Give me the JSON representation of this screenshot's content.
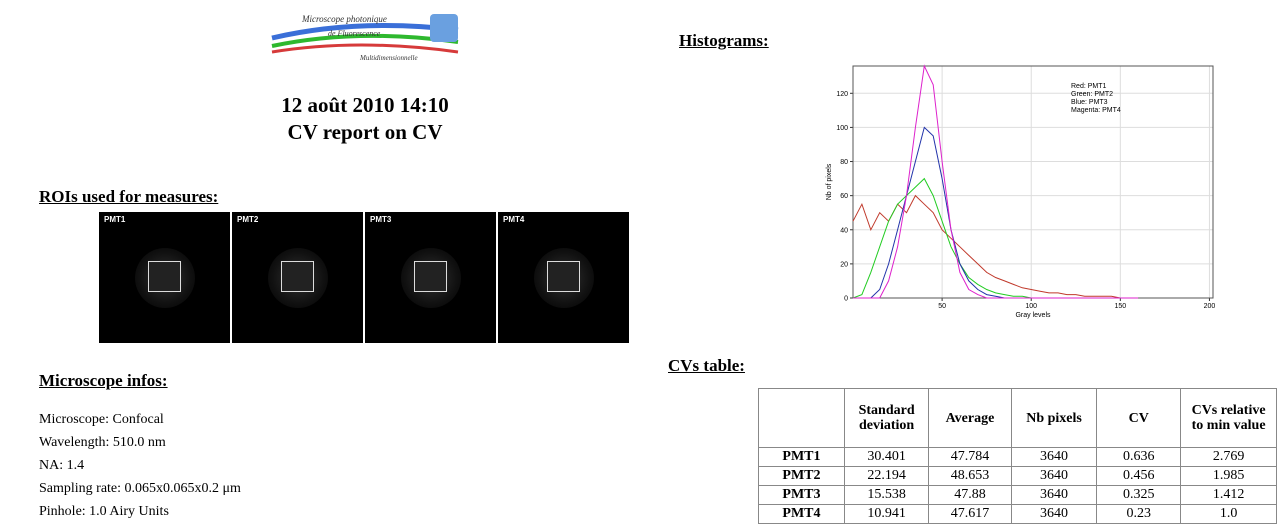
{
  "logo": {
    "line1": "Microscope photonique",
    "line2": "de Fluorescence",
    "line3": "Multidimensionnelle"
  },
  "header": {
    "date": "12 août 2010 14:10",
    "title": "CV report on CV"
  },
  "rois": {
    "heading": "ROIs used for measures:",
    "labels": [
      "PMT1",
      "PMT2",
      "PMT3",
      "PMT4"
    ]
  },
  "microscope": {
    "heading": "Microscope infos:",
    "lines": [
      "Microscope: Confocal",
      "Wavelength: 510.0 nm",
      "NA: 1.4",
      "Sampling rate: 0.065x0.065x0.2 μm",
      "Pinhole: 1.0 Airy Units"
    ]
  },
  "histograms": {
    "heading": "Histograms:"
  },
  "chart_data": {
    "type": "line",
    "x_label": "Gray levels",
    "y_label": "Nb of pixels",
    "legend": [
      "Red: PMT1",
      "Green: PMT2",
      "Blue: PMT3",
      "Magenta: PMT4"
    ],
    "x": [
      0,
      5,
      10,
      15,
      20,
      25,
      30,
      35,
      40,
      45,
      50,
      55,
      60,
      65,
      70,
      75,
      80,
      85,
      90,
      95,
      100,
      105,
      110,
      115,
      120,
      125,
      130,
      135,
      140,
      145,
      150,
      155,
      160
    ],
    "series": [
      {
        "color": "#c0392b",
        "values": [
          45,
          55,
          40,
          50,
          45,
          55,
          50,
          60,
          55,
          50,
          40,
          35,
          30,
          25,
          20,
          15,
          12,
          10,
          8,
          6,
          5,
          4,
          3,
          3,
          2,
          2,
          1,
          1,
          1,
          1,
          0,
          0,
          0
        ]
      },
      {
        "color": "#22cc22",
        "values": [
          0,
          2,
          15,
          30,
          45,
          55,
          60,
          65,
          70,
          60,
          45,
          30,
          20,
          12,
          8,
          5,
          3,
          2,
          1,
          1,
          0,
          0,
          0,
          0,
          0,
          0,
          0,
          0,
          0,
          0,
          0,
          0,
          0
        ]
      },
      {
        "color": "#2233aa",
        "values": [
          0,
          0,
          0,
          5,
          20,
          40,
          60,
          80,
          100,
          95,
          70,
          40,
          20,
          10,
          5,
          2,
          1,
          0,
          0,
          0,
          0,
          0,
          0,
          0,
          0,
          0,
          0,
          0,
          0,
          0,
          0,
          0,
          0
        ]
      },
      {
        "color": "#dd22cc",
        "values": [
          0,
          0,
          0,
          0,
          10,
          30,
          60,
          100,
          136,
          125,
          80,
          40,
          15,
          5,
          2,
          0,
          0,
          0,
          0,
          0,
          0,
          0,
          0,
          0,
          0,
          0,
          0,
          0,
          0,
          0,
          0,
          0,
          0
        ]
      }
    ],
    "xlim": [
      0,
      202
    ],
    "ylim": [
      0,
      136
    ],
    "xticks": [
      50,
      100,
      150,
      200
    ],
    "yticks": [
      0,
      20,
      40,
      60,
      80,
      100,
      120
    ],
    "grid": true
  },
  "cvs": {
    "heading": "CVs table:",
    "columns": [
      "Standard deviation",
      "Average",
      "Nb pixels",
      "CV",
      "CVs relative to min value"
    ],
    "rows": [
      [
        "PMT1",
        "30.401",
        "47.784",
        "3640",
        "0.636",
        "2.769"
      ],
      [
        "PMT2",
        "22.194",
        "48.653",
        "3640",
        "0.456",
        "1.985"
      ],
      [
        "PMT3",
        "15.538",
        "47.88",
        "3640",
        "0.325",
        "1.412"
      ],
      [
        "PMT4",
        "10.941",
        "47.617",
        "3640",
        "0.23",
        "1.0"
      ]
    ]
  }
}
